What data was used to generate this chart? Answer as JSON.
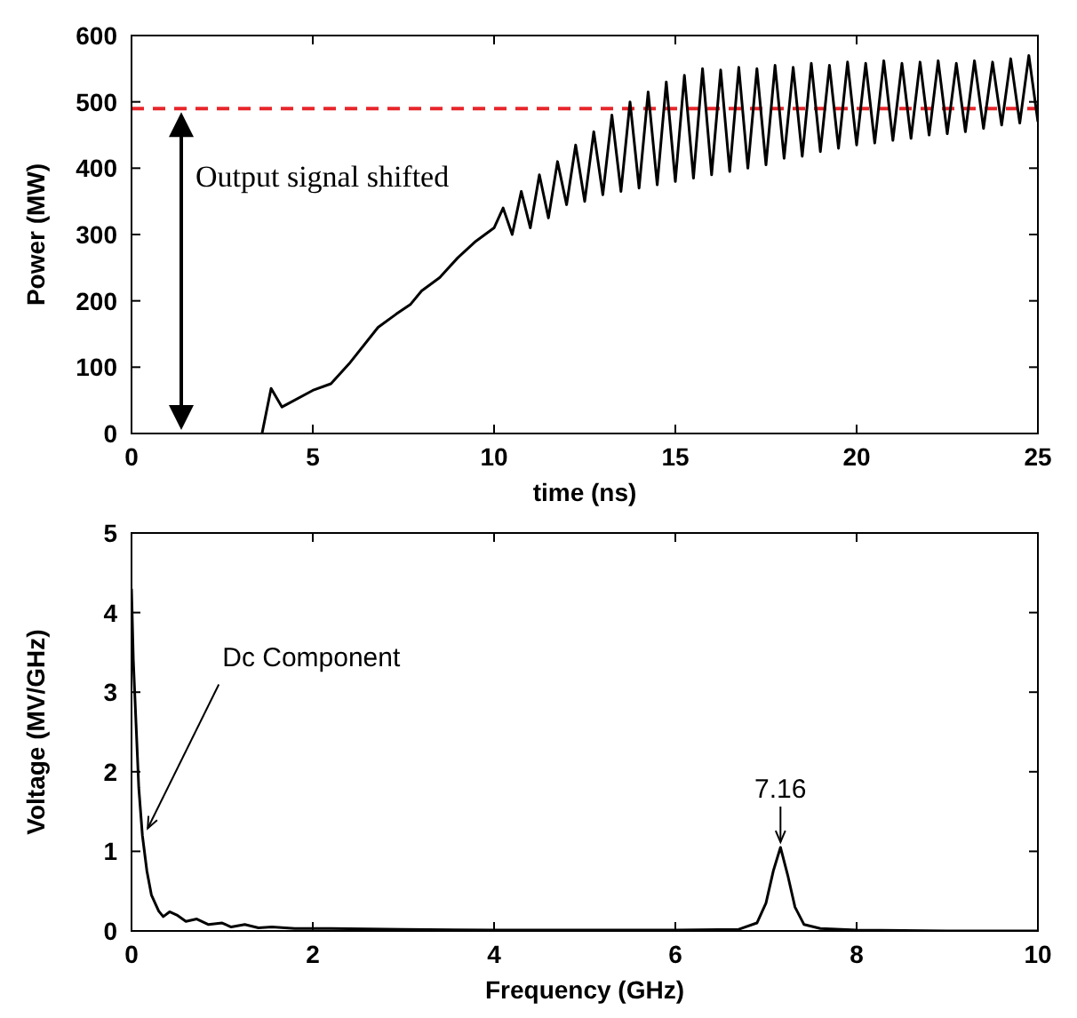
{
  "chart_data": [
    {
      "type": "line",
      "xlabel": "time (ns)",
      "ylabel": "Power (MW)",
      "xlim": [
        0,
        25
      ],
      "xticks": [
        0,
        5,
        10,
        15,
        20,
        25
      ],
      "ylim": [
        0,
        600
      ],
      "yticks": [
        0,
        100,
        200,
        300,
        400,
        500,
        600
      ],
      "grid": false,
      "marker": "none",
      "ref_lines": [
        {
          "axis": "y",
          "value": 490,
          "color": "#e8262b",
          "line_style": "dashed"
        }
      ],
      "annotations": [
        "Output signal shifted"
      ],
      "series": [
        {
          "color": "#000000",
          "x": [
            3.6,
            3.85,
            4.15,
            5,
            5.5,
            6,
            6.8,
            7.3,
            7.7,
            8,
            8.5,
            9,
            9.5,
            10,
            10.25,
            10.5,
            10.75,
            11,
            11.25,
            11.5,
            11.75,
            12,
            12.25,
            12.5,
            12.75,
            13,
            13.25,
            13.5,
            13.75,
            14,
            14.25,
            14.5,
            14.75,
            15,
            15.25,
            15.5,
            15.75,
            16,
            16.25,
            16.5,
            16.75,
            17,
            17.25,
            17.5,
            17.75,
            18,
            18.25,
            18.5,
            18.75,
            19,
            19.25,
            19.5,
            19.75,
            20,
            20.25,
            20.5,
            20.75,
            21,
            21.25,
            21.5,
            21.75,
            22,
            22.25,
            22.5,
            22.75,
            23,
            23.25,
            23.5,
            23.75,
            24,
            24.25,
            24.5,
            24.75,
            25
          ],
          "values": [
            0,
            68,
            40,
            65,
            75,
            105,
            160,
            180,
            195,
            215,
            235,
            265,
            290,
            310,
            340,
            300,
            365,
            310,
            390,
            325,
            410,
            345,
            435,
            350,
            455,
            360,
            480,
            365,
            500,
            370,
            515,
            375,
            530,
            380,
            540,
            385,
            550,
            390,
            548,
            395,
            552,
            400,
            550,
            405,
            555,
            415,
            552,
            418,
            558,
            425,
            555,
            430,
            560,
            435,
            558,
            438,
            562,
            442,
            558,
            445,
            560,
            450,
            562,
            452,
            558,
            455,
            562,
            460,
            560,
            465,
            565,
            468,
            570,
            470
          ]
        }
      ]
    },
    {
      "type": "line",
      "xlabel": "Frequency (GHz)",
      "ylabel": "Voltage (MV/GHz)",
      "xlim": [
        0,
        10
      ],
      "xticks": [
        0,
        2,
        4,
        6,
        8,
        10
      ],
      "ylim": [
        0,
        5
      ],
      "yticks": [
        0,
        1,
        2,
        3,
        4,
        5
      ],
      "grid": false,
      "marker": "none",
      "annotations": [
        {
          "text": "Dc Component",
          "x": 0.12,
          "y": 1.2
        },
        {
          "text": "7.16",
          "x": 7.16,
          "y": 1.05
        }
      ],
      "series": [
        {
          "color": "#000000",
          "x": [
            0,
            0.02,
            0.05,
            0.08,
            0.12,
            0.17,
            0.22,
            0.3,
            0.35,
            0.42,
            0.5,
            0.6,
            0.72,
            0.85,
            1,
            1.1,
            1.25,
            1.4,
            1.55,
            1.8,
            2.2,
            3,
            4,
            5,
            6,
            6.7,
            6.9,
            7,
            7.08,
            7.16,
            7.24,
            7.32,
            7.42,
            7.6,
            8,
            9,
            10
          ],
          "values": [
            4.3,
            3.4,
            2.6,
            1.8,
            1.2,
            0.75,
            0.45,
            0.25,
            0.18,
            0.24,
            0.2,
            0.12,
            0.15,
            0.08,
            0.1,
            0.05,
            0.08,
            0.04,
            0.05,
            0.03,
            0.03,
            0.02,
            0.01,
            0.01,
            0.01,
            0.02,
            0.1,
            0.35,
            0.75,
            1.05,
            0.7,
            0.3,
            0.08,
            0.03,
            0.01,
            0,
            0
          ]
        }
      ]
    }
  ]
}
